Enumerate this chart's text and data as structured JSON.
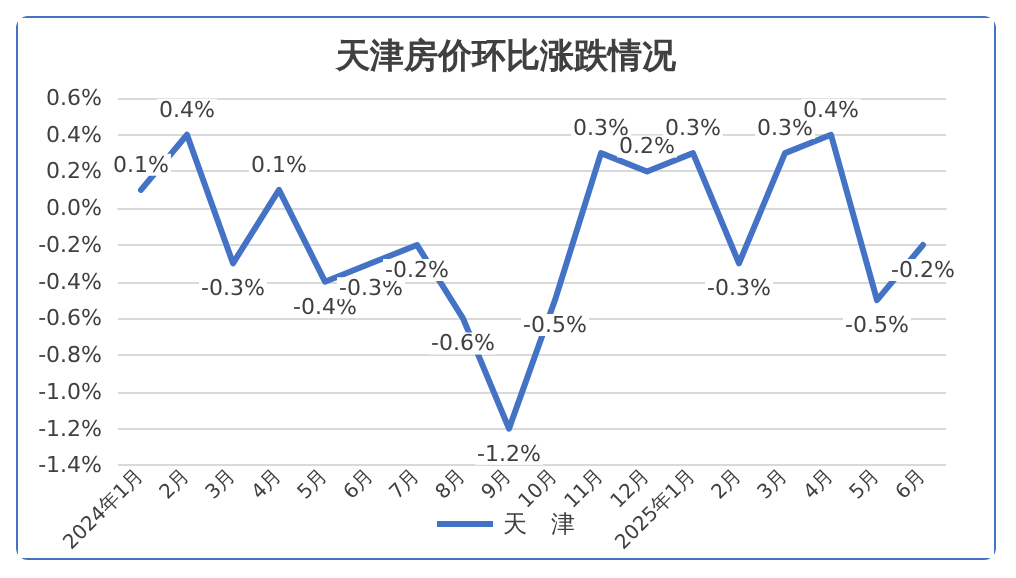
{
  "chart_data": {
    "type": "line",
    "title": "天津房价环比涨跌情况",
    "categories": [
      "2024年1月",
      "2月",
      "3月",
      "4月",
      "5月",
      "6月",
      "7月",
      "8月",
      "9月",
      "10月",
      "11月",
      "12月",
      "2025年1月",
      "2月",
      "3月",
      "4月",
      "5月",
      "6月"
    ],
    "series": [
      {
        "name": "天　津",
        "color": "#4472c4",
        "values": [
          0.1,
          0.4,
          -0.3,
          0.1,
          -0.4,
          -0.3,
          -0.2,
          -0.6,
          -1.2,
          -0.5,
          0.3,
          0.2,
          0.3,
          -0.3,
          0.3,
          0.4,
          -0.5,
          -0.2
        ],
        "value_labels": [
          "0.1%",
          "0.4%",
          "-0.3%",
          "0.1%",
          "-0.4%",
          "-0.3%",
          "-0.2%",
          "-0.6%",
          "-1.2%",
          "-0.5%",
          "0.3%",
          "0.2%",
          "0.3%",
          "-0.3%",
          "0.3%",
          "0.4%",
          "-0.5%",
          "-0.2%"
        ]
      }
    ],
    "ylim": [
      -1.4,
      0.6
    ],
    "yticks": [
      {
        "value": -1.4,
        "label": "-1.4%"
      },
      {
        "value": -1.2,
        "label": "-1.2%"
      },
      {
        "value": -1.0,
        "label": "-1.0%"
      },
      {
        "value": -0.8,
        "label": "-0.8%"
      },
      {
        "value": -0.6,
        "label": "-0.6%"
      },
      {
        "value": -0.4,
        "label": "-0.4%"
      },
      {
        "value": -0.2,
        "label": "-0.2%"
      },
      {
        "value": 0,
        "label": "0.0%"
      },
      {
        "value": 0.2,
        "label": "0.2%"
      },
      {
        "value": 0.4,
        "label": "0.4%"
      },
      {
        "value": 0.6,
        "label": "0.6%"
      }
    ],
    "grid": "y",
    "legend": "bottom",
    "marker": "none",
    "line_style": "solid"
  }
}
